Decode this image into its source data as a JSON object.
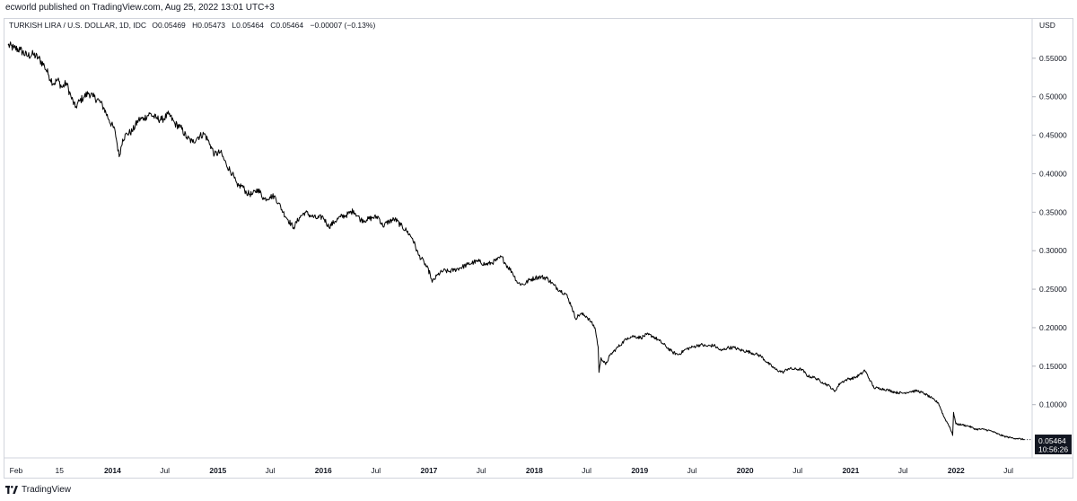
{
  "header": {
    "published_text": "ecworld published on TradingView.com, Aug 25, 2022 13:01 UTC+3"
  },
  "legend": {
    "symbol": "TURKISH LIRA / U.S. DOLLAR, 1D, IDC",
    "open_label": "O",
    "open": "0.05469",
    "high_label": "H",
    "high": "0.05473",
    "low_label": "L",
    "low": "0.05464",
    "close_label": "C",
    "close": "0.05464",
    "change": "−0.00007 (−0.13%)"
  },
  "price_badge": {
    "price": "0.05464",
    "countdown": "10:56:26"
  },
  "footer": {
    "brand": "TradingView",
    "logo_icon": "tradingview-logo-icon"
  },
  "chart_data": {
    "type": "line",
    "ylabel": "USD",
    "ylim": [
      0.032,
      0.6
    ],
    "y_ticks": [
      "0.55000",
      "0.50000",
      "0.45000",
      "0.40000",
      "0.35000",
      "0.30000",
      "0.25000",
      "0.20000",
      "0.15000",
      "0.10000"
    ],
    "y_tick_values": [
      0.55,
      0.5,
      0.45,
      0.4,
      0.35,
      0.3,
      0.25,
      0.2,
      0.15,
      0.1
    ],
    "x_ticks": [
      {
        "label": "Feb",
        "date": "2013-02-01",
        "bold": false
      },
      {
        "label": "15",
        "date": "2013-07-01",
        "bold": false
      },
      {
        "label": "2014",
        "date": "2014-01-01",
        "bold": true
      },
      {
        "label": "Jul",
        "date": "2014-07-01",
        "bold": false
      },
      {
        "label": "2015",
        "date": "2015-01-01",
        "bold": true
      },
      {
        "label": "Jul",
        "date": "2015-07-01",
        "bold": false
      },
      {
        "label": "2016",
        "date": "2016-01-01",
        "bold": true
      },
      {
        "label": "Jul",
        "date": "2016-07-01",
        "bold": false
      },
      {
        "label": "2017",
        "date": "2017-01-01",
        "bold": true
      },
      {
        "label": "Jul",
        "date": "2017-07-01",
        "bold": false
      },
      {
        "label": "2018",
        "date": "2018-01-01",
        "bold": true
      },
      {
        "label": "Jul",
        "date": "2018-07-01",
        "bold": false
      },
      {
        "label": "2019",
        "date": "2019-01-01",
        "bold": true
      },
      {
        "label": "Jul",
        "date": "2019-07-01",
        "bold": false
      },
      {
        "label": "2020",
        "date": "2020-01-01",
        "bold": true
      },
      {
        "label": "Jul",
        "date": "2020-07-01",
        "bold": false
      },
      {
        "label": "2021",
        "date": "2021-01-01",
        "bold": true
      },
      {
        "label": "Jul",
        "date": "2021-07-01",
        "bold": false
      },
      {
        "label": "2022",
        "date": "2022-01-01",
        "bold": true
      },
      {
        "label": "Jul",
        "date": "2022-07-01",
        "bold": false
      }
    ],
    "xlim": [
      "2013-01-01",
      "2022-09-15"
    ],
    "series": [
      {
        "color": "#000000",
        "points": [
          [
            "2013-01-04",
            0.567
          ],
          [
            "2013-01-25",
            0.563
          ],
          [
            "2013-02-15",
            0.561
          ],
          [
            "2013-03-10",
            0.553
          ],
          [
            "2013-04-01",
            0.555
          ],
          [
            "2013-04-20",
            0.55
          ],
          [
            "2013-05-10",
            0.54
          ],
          [
            "2013-05-25",
            0.528
          ],
          [
            "2013-06-10",
            0.517
          ],
          [
            "2013-06-25",
            0.522
          ],
          [
            "2013-07-10",
            0.512
          ],
          [
            "2013-07-25",
            0.518
          ],
          [
            "2013-08-10",
            0.5
          ],
          [
            "2013-08-25",
            0.486
          ],
          [
            "2013-09-10",
            0.495
          ],
          [
            "2013-09-25",
            0.5
          ],
          [
            "2013-10-10",
            0.505
          ],
          [
            "2013-10-25",
            0.5
          ],
          [
            "2013-11-15",
            0.495
          ],
          [
            "2013-12-01",
            0.486
          ],
          [
            "2013-12-20",
            0.47
          ],
          [
            "2014-01-10",
            0.455
          ],
          [
            "2014-01-24",
            0.422
          ],
          [
            "2014-02-05",
            0.445
          ],
          [
            "2014-02-20",
            0.452
          ],
          [
            "2014-03-10",
            0.455
          ],
          [
            "2014-04-01",
            0.47
          ],
          [
            "2014-04-20",
            0.472
          ],
          [
            "2014-05-10",
            0.478
          ],
          [
            "2014-06-01",
            0.472
          ],
          [
            "2014-06-20",
            0.47
          ],
          [
            "2014-07-15",
            0.477
          ],
          [
            "2014-08-05",
            0.465
          ],
          [
            "2014-08-25",
            0.46
          ],
          [
            "2014-09-15",
            0.447
          ],
          [
            "2014-10-05",
            0.441
          ],
          [
            "2014-10-25",
            0.448
          ],
          [
            "2014-11-15",
            0.452
          ],
          [
            "2014-12-05",
            0.438
          ],
          [
            "2014-12-20",
            0.425
          ],
          [
            "2015-01-10",
            0.428
          ],
          [
            "2015-01-30",
            0.412
          ],
          [
            "2015-02-20",
            0.4
          ],
          [
            "2015-03-10",
            0.383
          ],
          [
            "2015-03-25",
            0.385
          ],
          [
            "2015-04-10",
            0.375
          ],
          [
            "2015-04-30",
            0.373
          ],
          [
            "2015-05-20",
            0.38
          ],
          [
            "2015-06-10",
            0.367
          ],
          [
            "2015-06-30",
            0.37
          ],
          [
            "2015-07-15",
            0.371
          ],
          [
            "2015-07-30",
            0.362
          ],
          [
            "2015-08-15",
            0.35
          ],
          [
            "2015-09-01",
            0.34
          ],
          [
            "2015-09-20",
            0.33
          ],
          [
            "2015-10-10",
            0.343
          ],
          [
            "2015-10-30",
            0.35
          ],
          [
            "2015-11-20",
            0.345
          ],
          [
            "2015-12-10",
            0.342
          ],
          [
            "2015-12-31",
            0.344
          ],
          [
            "2016-01-20",
            0.331
          ],
          [
            "2016-02-10",
            0.338
          ],
          [
            "2016-03-01",
            0.344
          ],
          [
            "2016-03-20",
            0.346
          ],
          [
            "2016-04-15",
            0.352
          ],
          [
            "2016-05-10",
            0.34
          ],
          [
            "2016-05-30",
            0.34
          ],
          [
            "2016-06-20",
            0.343
          ],
          [
            "2016-07-10",
            0.344
          ],
          [
            "2016-07-25",
            0.332
          ],
          [
            "2016-08-15",
            0.338
          ],
          [
            "2016-09-05",
            0.341
          ],
          [
            "2016-09-25",
            0.333
          ],
          [
            "2016-10-15",
            0.326
          ],
          [
            "2016-11-05",
            0.316
          ],
          [
            "2016-11-25",
            0.295
          ],
          [
            "2016-12-15",
            0.285
          ],
          [
            "2017-01-05",
            0.27
          ],
          [
            "2017-01-12",
            0.259
          ],
          [
            "2017-02-01",
            0.269
          ],
          [
            "2017-02-20",
            0.274
          ],
          [
            "2017-03-10",
            0.273
          ],
          [
            "2017-03-30",
            0.275
          ],
          [
            "2017-04-20",
            0.278
          ],
          [
            "2017-05-15",
            0.282
          ],
          [
            "2017-06-05",
            0.285
          ],
          [
            "2017-06-25",
            0.286
          ],
          [
            "2017-07-15",
            0.282
          ],
          [
            "2017-08-05",
            0.284
          ],
          [
            "2017-08-25",
            0.288
          ],
          [
            "2017-09-10",
            0.292
          ],
          [
            "2017-09-25",
            0.282
          ],
          [
            "2017-10-15",
            0.273
          ],
          [
            "2017-11-05",
            0.258
          ],
          [
            "2017-11-25",
            0.256
          ],
          [
            "2017-12-15",
            0.262
          ],
          [
            "2018-01-05",
            0.265
          ],
          [
            "2018-01-25",
            0.266
          ],
          [
            "2018-02-15",
            0.264
          ],
          [
            "2018-03-10",
            0.255
          ],
          [
            "2018-04-01",
            0.248
          ],
          [
            "2018-04-20",
            0.244
          ],
          [
            "2018-05-10",
            0.228
          ],
          [
            "2018-05-23",
            0.212
          ],
          [
            "2018-06-10",
            0.218
          ],
          [
            "2018-06-30",
            0.215
          ],
          [
            "2018-07-15",
            0.208
          ],
          [
            "2018-07-30",
            0.2
          ],
          [
            "2018-08-10",
            0.175
          ],
          [
            "2018-08-13",
            0.142
          ],
          [
            "2018-08-20",
            0.161
          ],
          [
            "2018-09-05",
            0.152
          ],
          [
            "2018-09-20",
            0.164
          ],
          [
            "2018-10-10",
            0.172
          ],
          [
            "2018-11-01",
            0.18
          ],
          [
            "2018-11-20",
            0.187
          ],
          [
            "2018-12-10",
            0.189
          ],
          [
            "2019-01-05",
            0.187
          ],
          [
            "2019-01-25",
            0.191
          ],
          [
            "2019-02-15",
            0.189
          ],
          [
            "2019-03-10",
            0.183
          ],
          [
            "2019-04-01",
            0.176
          ],
          [
            "2019-04-25",
            0.168
          ],
          [
            "2019-05-15",
            0.165
          ],
          [
            "2019-06-10",
            0.172
          ],
          [
            "2019-07-05",
            0.175
          ],
          [
            "2019-07-30",
            0.178
          ],
          [
            "2019-08-20",
            0.176
          ],
          [
            "2019-09-15",
            0.177
          ],
          [
            "2019-10-10",
            0.17
          ],
          [
            "2019-11-01",
            0.174
          ],
          [
            "2019-11-25",
            0.174
          ],
          [
            "2019-12-15",
            0.171
          ],
          [
            "2020-01-10",
            0.169
          ],
          [
            "2020-02-05",
            0.166
          ],
          [
            "2020-02-25",
            0.163
          ],
          [
            "2020-03-20",
            0.154
          ],
          [
            "2020-04-15",
            0.146
          ],
          [
            "2020-05-10",
            0.142
          ],
          [
            "2020-05-30",
            0.147
          ],
          [
            "2020-06-20",
            0.146
          ],
          [
            "2020-07-15",
            0.146
          ],
          [
            "2020-08-05",
            0.137
          ],
          [
            "2020-08-30",
            0.135
          ],
          [
            "2020-09-25",
            0.129
          ],
          [
            "2020-10-20",
            0.124
          ],
          [
            "2020-11-06",
            0.117
          ],
          [
            "2020-11-25",
            0.128
          ],
          [
            "2020-12-20",
            0.133
          ],
          [
            "2021-01-15",
            0.135
          ],
          [
            "2021-02-10",
            0.141
          ],
          [
            "2021-02-18",
            0.145
          ],
          [
            "2021-03-10",
            0.131
          ],
          [
            "2021-03-22",
            0.122
          ],
          [
            "2021-04-15",
            0.121
          ],
          [
            "2021-05-10",
            0.119
          ],
          [
            "2021-06-05",
            0.116
          ],
          [
            "2021-07-01",
            0.115
          ],
          [
            "2021-07-25",
            0.117
          ],
          [
            "2021-08-20",
            0.118
          ],
          [
            "2021-09-15",
            0.114
          ],
          [
            "2021-10-10",
            0.108
          ],
          [
            "2021-11-01",
            0.102
          ],
          [
            "2021-11-20",
            0.084
          ],
          [
            "2021-12-10",
            0.071
          ],
          [
            "2021-12-20",
            0.06
          ],
          [
            "2021-12-23",
            0.09
          ],
          [
            "2021-12-31",
            0.075
          ],
          [
            "2022-01-20",
            0.074
          ],
          [
            "2022-02-15",
            0.072
          ],
          [
            "2022-03-10",
            0.068
          ],
          [
            "2022-04-05",
            0.068
          ],
          [
            "2022-05-01",
            0.066
          ],
          [
            "2022-05-25",
            0.062
          ],
          [
            "2022-06-15",
            0.059
          ],
          [
            "2022-07-10",
            0.057
          ],
          [
            "2022-08-01",
            0.056
          ],
          [
            "2022-08-25",
            0.0546
          ]
        ]
      }
    ]
  }
}
